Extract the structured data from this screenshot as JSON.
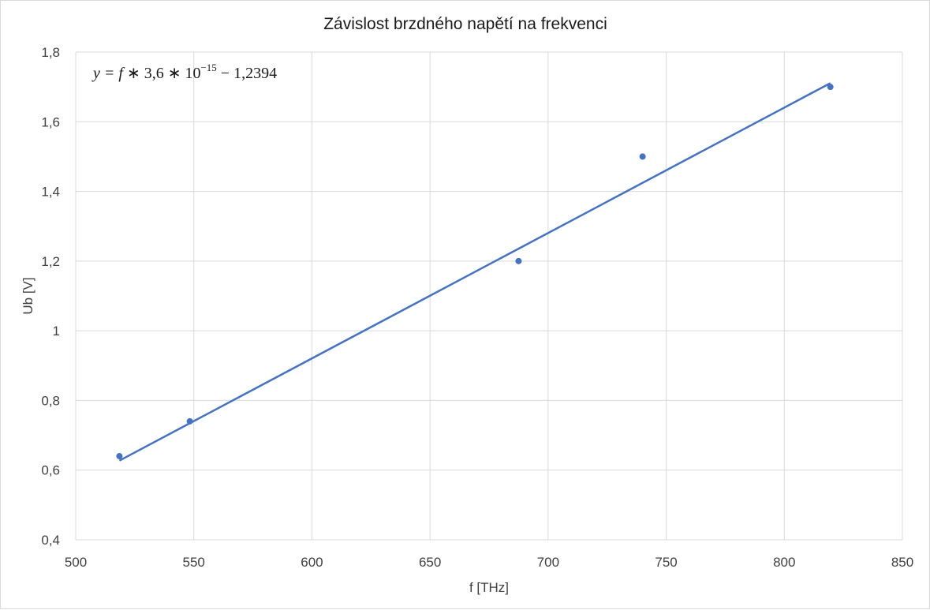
{
  "chart_data": {
    "type": "scatter",
    "title": "Závislost brzdného napětí na frekvenci",
    "xlabel": "f [THz]",
    "ylabel": "Ub [V]",
    "xlim": [
      500,
      850
    ],
    "ylim": [
      0.4,
      1.8
    ],
    "x_ticks": [
      "500",
      "550",
      "600",
      "650",
      "700",
      "750",
      "800",
      "850"
    ],
    "y_ticks": [
      "0,4",
      "0,6",
      "0,8",
      "1",
      "1,2",
      "1,4",
      "1,6",
      "1,8"
    ],
    "grid": true,
    "legend": "none",
    "series": [
      {
        "x": [
          518.5,
          548.3,
          687.5,
          740.0,
          819.5
        ],
        "y": [
          0.64,
          0.74,
          1.2,
          1.5,
          1.7
        ]
      }
    ],
    "trendline": {
      "type": "linear",
      "slope": 0.0036,
      "intercept": -1.2394,
      "x_range": [
        518.5,
        819.5
      ],
      "equation": {
        "lhs": "y = f",
        "middle": " ∗ 3,6 ∗ 10",
        "exponent": "−15",
        "tail": " − 1,2394"
      }
    },
    "colors": {
      "series": "#4472c4",
      "trendline": "#4472c4",
      "grid": "#d9d9d9",
      "text": "#404040"
    }
  }
}
